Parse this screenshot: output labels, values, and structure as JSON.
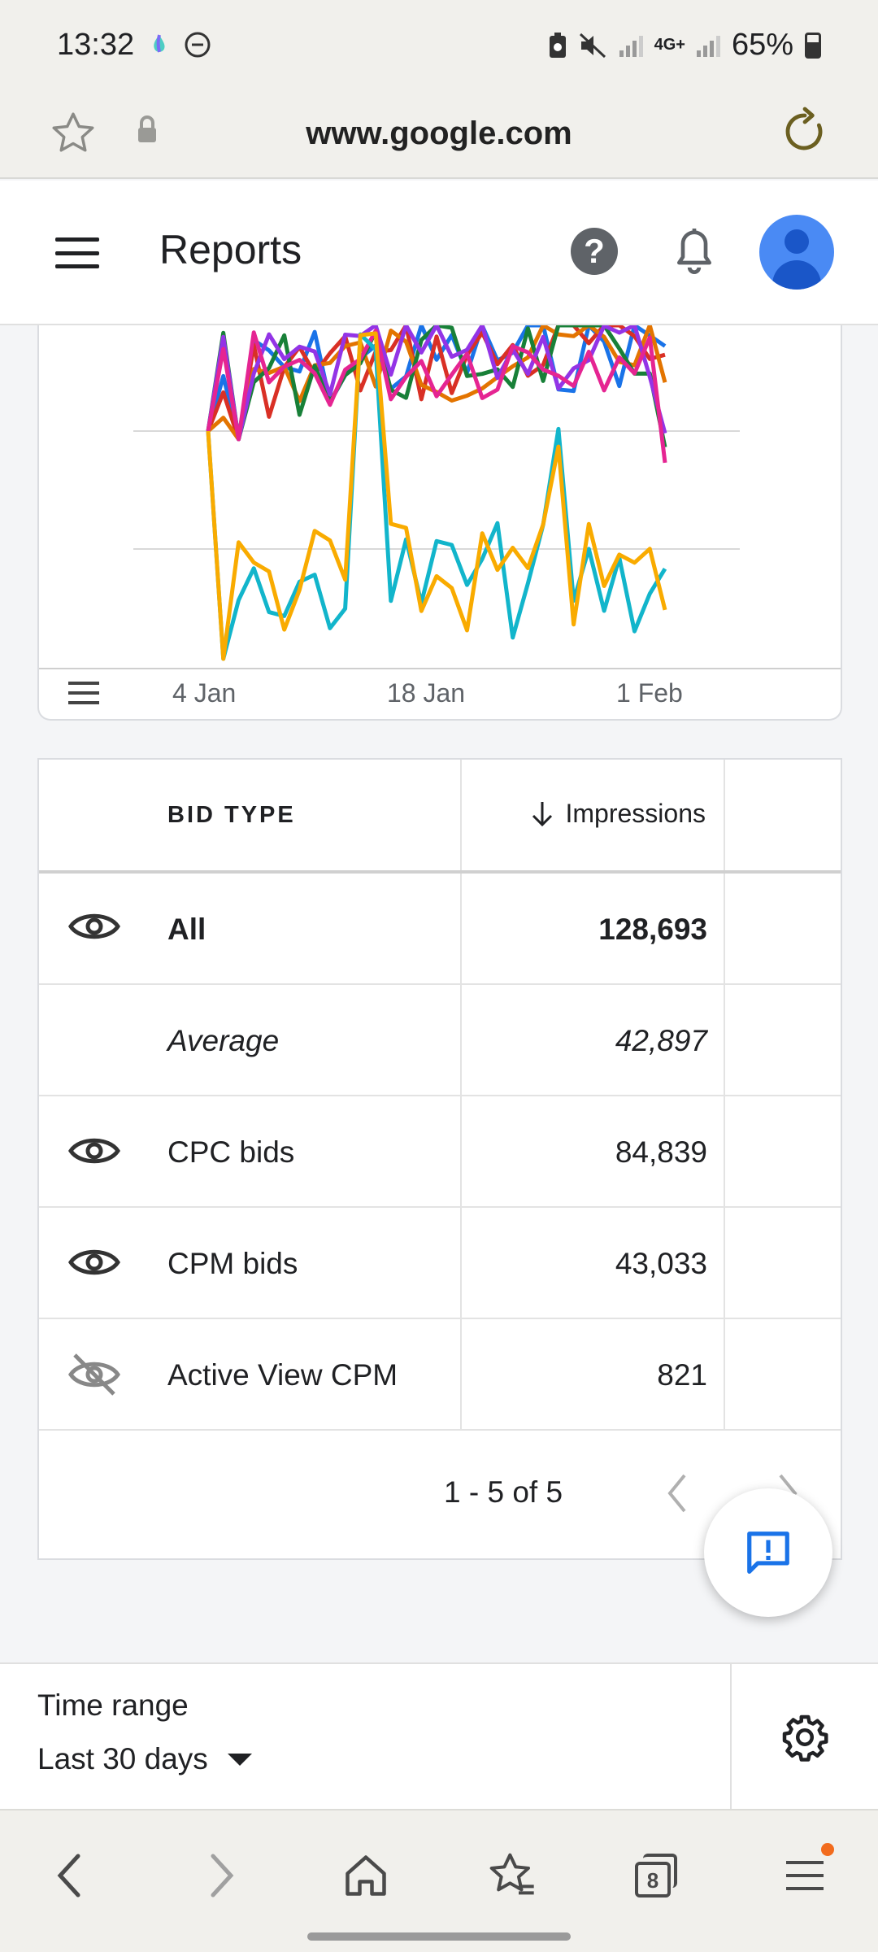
{
  "status_bar": {
    "time": "13:32",
    "battery": "65%",
    "network": "4G+"
  },
  "browser": {
    "url": "www.google.com"
  },
  "header": {
    "title": "Reports"
  },
  "chart_data": {
    "type": "line",
    "x_ticks": [
      "4 Jan",
      "18 Jan",
      "1 Feb"
    ],
    "note": "",
    "series": [
      {
        "color": "#1a73e8"
      },
      {
        "color": "#d93025"
      },
      {
        "color": "#e37400"
      },
      {
        "color": "#188038"
      },
      {
        "color": "#9334e6"
      },
      {
        "color": "#e52592"
      },
      {
        "color": "#12b5cb"
      },
      {
        "color": "#f9ab00"
      }
    ]
  },
  "table": {
    "headers": {
      "bid_type": "BID TYPE",
      "impressions": "Impressions"
    },
    "rows": [
      {
        "name": "All",
        "value": "128,693",
        "icon": "eye-icon"
      },
      {
        "name": "Average",
        "value": "42,897",
        "icon": ""
      },
      {
        "name": "CPC bids",
        "value": "84,839",
        "icon": "eye-icon"
      },
      {
        "name": "CPM bids",
        "value": "43,033",
        "icon": "eye-icon"
      },
      {
        "name": "Active View CPM",
        "value": "821",
        "icon": "eye-off-icon"
      }
    ],
    "pagination": "1 - 5 of 5"
  },
  "time_range": {
    "label": "Time range",
    "value": "Last 30 days"
  },
  "nav": {
    "tab_count": "8"
  }
}
